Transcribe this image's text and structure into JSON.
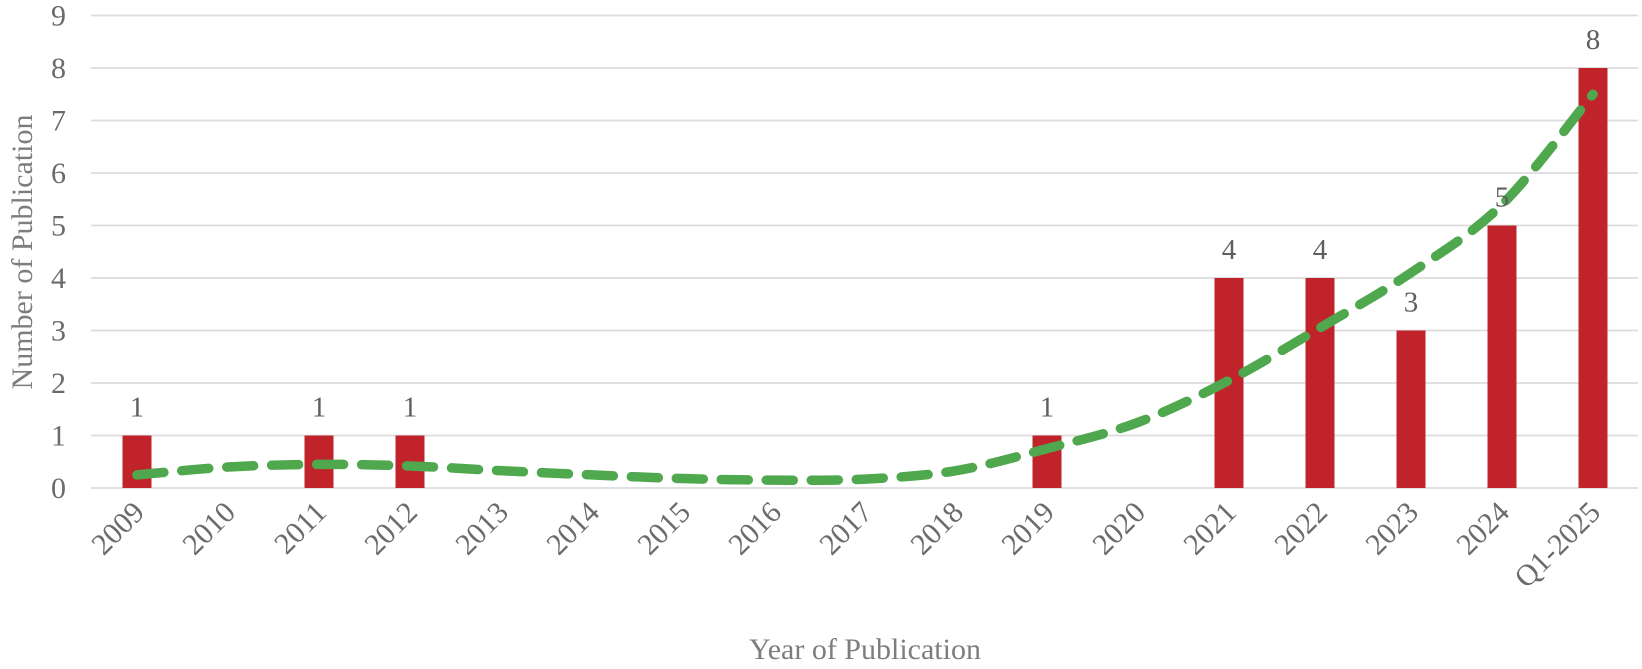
{
  "chart_data": {
    "type": "bar",
    "title": "",
    "xlabel": "Year of Publication",
    "ylabel": "Number of Publication",
    "categories": [
      "2009",
      "2010",
      "2011",
      "2012",
      "2013",
      "2014",
      "2015",
      "2016",
      "2017",
      "2018",
      "2019",
      "2020",
      "2021",
      "2022",
      "2023",
      "2024",
      "Q1-2025"
    ],
    "series": [
      {
        "name": "Number of Publication",
        "type": "bar",
        "values": [
          1,
          0,
          1,
          1,
          0,
          0,
          0,
          0,
          0,
          0,
          1,
          0,
          4,
          4,
          3,
          5,
          8
        ],
        "data_labels": [
          "1",
          "",
          "1",
          "1",
          "",
          "",
          "",
          "",
          "",
          "",
          "1",
          "",
          "4",
          "4",
          "3",
          "5",
          "8"
        ],
        "color": "#c1232b"
      },
      {
        "name": "Trendline",
        "type": "dashed-line",
        "values": [
          0.25,
          0.4,
          0.45,
          0.42,
          0.33,
          0.25,
          0.18,
          0.15,
          0.17,
          0.33,
          0.75,
          1.25,
          2.05,
          3.05,
          4.1,
          5.4,
          7.5
        ],
        "color": "#4fa84e"
      }
    ],
    "y_ticks": [
      "0",
      "1",
      "2",
      "3",
      "4",
      "5",
      "6",
      "7",
      "8",
      "9"
    ],
    "ylim": [
      0,
      9
    ],
    "grid": "horizontal",
    "legend": "none",
    "colors": {
      "bar": "#c1232b",
      "trend": "#4fa84e",
      "gridline": "#dcdcdc",
      "tick_text": "#6b6b6b",
      "data_label_text": "#5f5f5f",
      "axis_title_text": "#7d7d7d",
      "background": "#ffffff"
    }
  }
}
